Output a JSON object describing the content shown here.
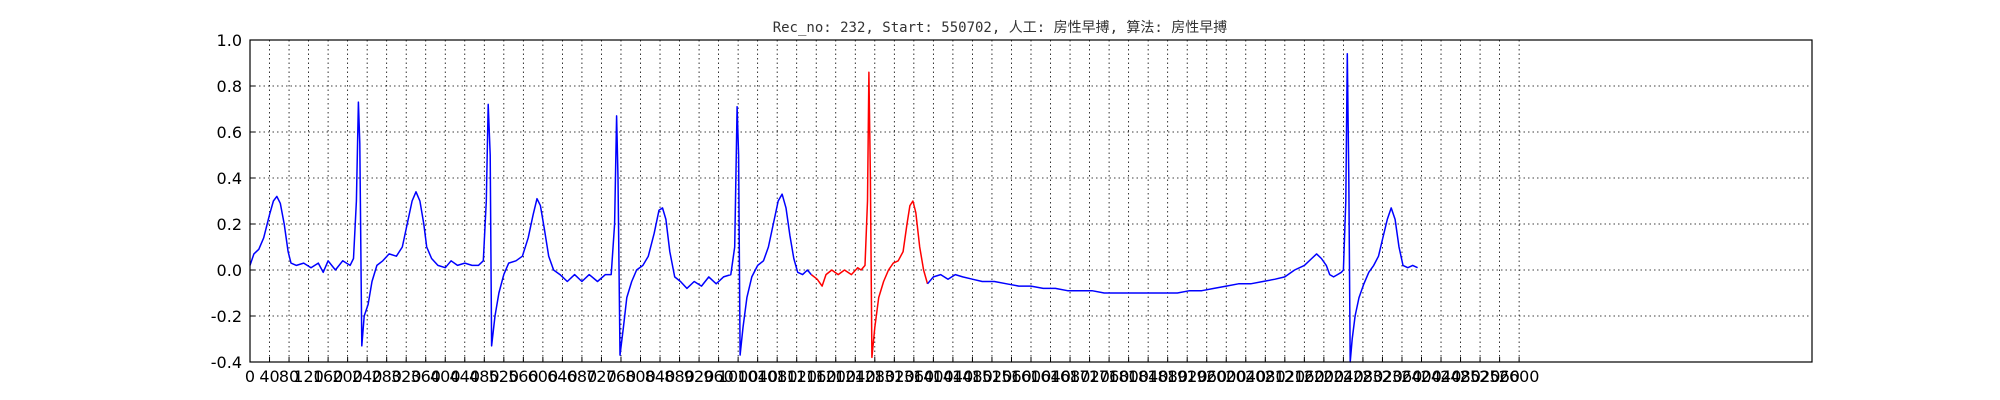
{
  "chart_data": {
    "type": "line",
    "title": "Rec_no: 232, Start: 550702, 人工: 房性早搏, 算法: 房性早搏",
    "xlim": [
      0,
      3200
    ],
    "ylim": [
      -0.4,
      1.0
    ],
    "grid": true,
    "grid_style": "dotted",
    "x_tick_step": 40,
    "x_tick_labels": [
      "0",
      "40",
      "80",
      "120",
      "160",
      "200",
      "240",
      "280",
      "320",
      "360",
      "400",
      "440",
      "480",
      "520",
      "560",
      "600",
      "640",
      "680",
      "720",
      "760",
      "800",
      "840",
      "880",
      "920",
      "960",
      "1000",
      "1040",
      "1080",
      "1120",
      "1160",
      "1200",
      "1240",
      "1280",
      "1320",
      "1360",
      "1400",
      "1440",
      "1480",
      "1520",
      "1560",
      "1600",
      "1640",
      "1680",
      "1720",
      "1760",
      "1800",
      "1840",
      "1880",
      "1920",
      "1960",
      "2000",
      "2040",
      "2080",
      "2120",
      "2160",
      "2200",
      "2240",
      "2280",
      "2320",
      "2360",
      "2400",
      "2440",
      "2480",
      "2520",
      "2560",
      "2600"
    ],
    "y_ticks": [
      "-0.4",
      "-0.2",
      "0.0",
      "0.2",
      "0.4",
      "0.6",
      "0.8",
      "1.0"
    ],
    "y_tick_values": [
      -0.4,
      -0.2,
      0.0,
      0.2,
      0.4,
      0.6,
      0.8,
      1.0
    ],
    "series": [
      {
        "color": "#0000ff",
        "points": [
          [
            0,
            0.02
          ],
          [
            8,
            0.07
          ],
          [
            18,
            0.09
          ],
          [
            28,
            0.14
          ],
          [
            40,
            0.24
          ],
          [
            48,
            0.3
          ],
          [
            55,
            0.32
          ],
          [
            62,
            0.29
          ],
          [
            70,
            0.2
          ],
          [
            78,
            0.08
          ],
          [
            84,
            0.03
          ],
          [
            95,
            0.02
          ],
          [
            110,
            0.03
          ],
          [
            125,
            0.01
          ],
          [
            140,
            0.03
          ],
          [
            150,
            -0.01
          ],
          [
            160,
            0.04
          ],
          [
            175,
            0.0
          ],
          [
            190,
            0.04
          ],
          [
            205,
            0.02
          ],
          [
            212,
            0.05
          ],
          [
            218,
            0.3
          ],
          [
            222,
            0.73
          ],
          [
            225,
            0.55
          ],
          [
            229,
            -0.33
          ],
          [
            234,
            -0.2
          ],
          [
            242,
            -0.15
          ],
          [
            250,
            -0.05
          ],
          [
            260,
            0.02
          ],
          [
            272,
            0.04
          ],
          [
            285,
            0.07
          ],
          [
            300,
            0.06
          ],
          [
            312,
            0.1
          ],
          [
            322,
            0.2
          ],
          [
            332,
            0.3
          ],
          [
            340,
            0.34
          ],
          [
            348,
            0.3
          ],
          [
            356,
            0.2
          ],
          [
            362,
            0.1
          ],
          [
            372,
            0.05
          ],
          [
            385,
            0.02
          ],
          [
            400,
            0.01
          ],
          [
            412,
            0.04
          ],
          [
            425,
            0.02
          ],
          [
            440,
            0.03
          ],
          [
            455,
            0.02
          ],
          [
            468,
            0.02
          ],
          [
            478,
            0.04
          ],
          [
            484,
            0.3
          ],
          [
            488,
            0.72
          ],
          [
            492,
            0.5
          ],
          [
            495,
            -0.33
          ],
          [
            502,
            -0.2
          ],
          [
            510,
            -0.1
          ],
          [
            520,
            -0.02
          ],
          [
            530,
            0.03
          ],
          [
            545,
            0.04
          ],
          [
            558,
            0.06
          ],
          [
            570,
            0.14
          ],
          [
            580,
            0.24
          ],
          [
            588,
            0.31
          ],
          [
            595,
            0.28
          ],
          [
            603,
            0.18
          ],
          [
            612,
            0.06
          ],
          [
            622,
            0.0
          ],
          [
            635,
            -0.02
          ],
          [
            650,
            -0.05
          ],
          [
            665,
            -0.02
          ],
          [
            680,
            -0.05
          ],
          [
            695,
            -0.02
          ],
          [
            712,
            -0.05
          ],
          [
            728,
            -0.02
          ],
          [
            740,
            -0.02
          ],
          [
            747,
            0.2
          ],
          [
            751,
            0.67
          ],
          [
            754,
            0.4
          ],
          [
            758,
            -0.37
          ],
          [
            765,
            -0.25
          ],
          [
            772,
            -0.12
          ],
          [
            782,
            -0.05
          ],
          [
            792,
            0.0
          ],
          [
            805,
            0.02
          ],
          [
            816,
            0.06
          ],
          [
            828,
            0.16
          ],
          [
            838,
            0.26
          ],
          [
            845,
            0.27
          ],
          [
            852,
            0.22
          ],
          [
            860,
            0.08
          ],
          [
            870,
            -0.03
          ],
          [
            882,
            -0.05
          ],
          [
            895,
            -0.08
          ],
          [
            910,
            -0.05
          ],
          [
            925,
            -0.07
          ],
          [
            940,
            -0.03
          ],
          [
            955,
            -0.06
          ],
          [
            970,
            -0.03
          ],
          [
            985,
            -0.02
          ],
          [
            993,
            0.1
          ],
          [
            998,
            0.71
          ],
          [
            1001,
            0.5
          ],
          [
            1004,
            -0.37
          ],
          [
            1010,
            -0.25
          ],
          [
            1018,
            -0.12
          ],
          [
            1028,
            -0.03
          ],
          [
            1040,
            0.02
          ],
          [
            1052,
            0.04
          ],
          [
            1062,
            0.1
          ],
          [
            1072,
            0.2
          ],
          [
            1082,
            0.3
          ],
          [
            1090,
            0.33
          ],
          [
            1098,
            0.27
          ],
          [
            1106,
            0.15
          ],
          [
            1114,
            0.05
          ],
          [
            1122,
            -0.01
          ],
          [
            1132,
            -0.02
          ],
          [
            1142,
            0.0
          ],
          [
            1150,
            -0.02
          ]
        ]
      },
      {
        "color": "#ff0000",
        "points": [
          [
            1150,
            -0.02
          ],
          [
            1162,
            -0.04
          ],
          [
            1172,
            -0.07
          ],
          [
            1180,
            -0.02
          ],
          [
            1192,
            0.0
          ],
          [
            1205,
            -0.02
          ],
          [
            1218,
            0.0
          ],
          [
            1232,
            -0.02
          ],
          [
            1245,
            0.01
          ],
          [
            1252,
            0.0
          ],
          [
            1260,
            0.02
          ],
          [
            1265,
            0.3
          ],
          [
            1268,
            0.86
          ],
          [
            1271,
            0.4
          ],
          [
            1274,
            -0.38
          ],
          [
            1280,
            -0.25
          ],
          [
            1288,
            -0.12
          ],
          [
            1298,
            -0.05
          ],
          [
            1308,
            0.0
          ],
          [
            1318,
            0.03
          ],
          [
            1328,
            0.04
          ],
          [
            1338,
            0.08
          ],
          [
            1346,
            0.2
          ],
          [
            1352,
            0.28
          ],
          [
            1358,
            0.3
          ],
          [
            1364,
            0.25
          ],
          [
            1372,
            0.1
          ],
          [
            1380,
            0.0
          ],
          [
            1388,
            -0.06
          ]
        ]
      },
      {
        "color": "#0000ff",
        "points": [
          [
            1388,
            -0.06
          ],
          [
            1400,
            -0.03
          ],
          [
            1415,
            -0.02
          ],
          [
            1430,
            -0.04
          ],
          [
            1445,
            -0.02
          ],
          [
            1460,
            -0.03
          ],
          [
            1480,
            -0.04
          ],
          [
            1500,
            -0.05
          ],
          [
            1525,
            -0.05
          ],
          [
            1550,
            -0.06
          ],
          [
            1575,
            -0.07
          ],
          [
            1600,
            -0.07
          ],
          [
            1625,
            -0.08
          ],
          [
            1650,
            -0.08
          ],
          [
            1675,
            -0.09
          ],
          [
            1700,
            -0.09
          ],
          [
            1725,
            -0.09
          ],
          [
            1750,
            -0.1
          ],
          [
            1775,
            -0.1
          ],
          [
            1800,
            -0.1
          ],
          [
            1825,
            -0.1
          ],
          [
            1850,
            -0.1
          ],
          [
            1875,
            -0.1
          ],
          [
            1900,
            -0.1
          ],
          [
            1925,
            -0.09
          ],
          [
            1950,
            -0.09
          ],
          [
            1975,
            -0.08
          ],
          [
            2000,
            -0.07
          ],
          [
            2025,
            -0.06
          ],
          [
            2050,
            -0.06
          ],
          [
            2075,
            -0.05
          ],
          [
            2100,
            -0.04
          ],
          [
            2120,
            -0.03
          ],
          [
            2140,
            0.0
          ],
          [
            2160,
            0.02
          ],
          [
            2175,
            0.05
          ],
          [
            2185,
            0.07
          ],
          [
            2195,
            0.05
          ],
          [
            2205,
            0.02
          ],
          [
            2212,
            -0.02
          ],
          [
            2220,
            -0.03
          ],
          [
            2228,
            -0.02
          ],
          [
            2236,
            -0.01
          ],
          [
            2240,
            0.0
          ],
          [
            2245,
            0.3
          ],
          [
            2248,
            0.94
          ],
          [
            2251,
            0.4
          ],
          [
            2254,
            -0.4
          ],
          [
            2258,
            -0.3
          ],
          [
            2264,
            -0.2
          ],
          [
            2272,
            -0.12
          ],
          [
            2282,
            -0.06
          ],
          [
            2292,
            -0.01
          ],
          [
            2302,
            0.02
          ],
          [
            2312,
            0.06
          ],
          [
            2322,
            0.15
          ],
          [
            2330,
            0.22
          ],
          [
            2338,
            0.27
          ],
          [
            2346,
            0.22
          ],
          [
            2354,
            0.1
          ],
          [
            2362,
            0.02
          ],
          [
            2372,
            0.01
          ],
          [
            2382,
            0.02
          ],
          [
            2392,
            0.01
          ]
        ]
      }
    ]
  }
}
